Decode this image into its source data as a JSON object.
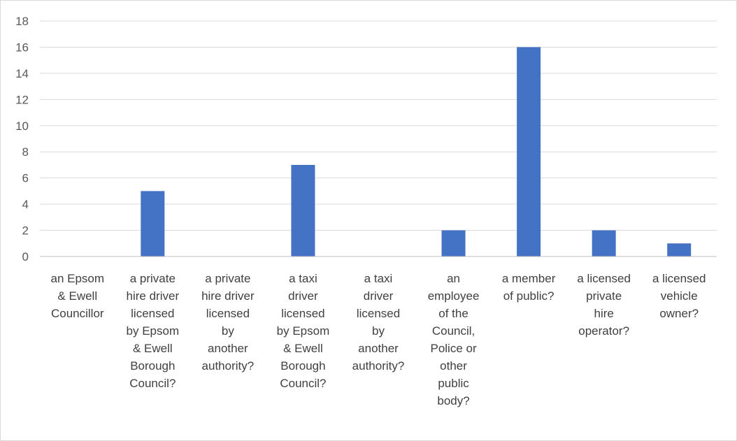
{
  "chart_data": {
    "type": "bar",
    "title": "",
    "xlabel": "",
    "ylabel": "",
    "ylim": [
      0,
      18
    ],
    "yticks": [
      0,
      2,
      4,
      6,
      8,
      10,
      12,
      14,
      16,
      18
    ],
    "grid": true,
    "legend": "none",
    "bar_color": "#4472c4",
    "categories": [
      [
        "an Epsom",
        "& Ewell",
        "Councillor"
      ],
      [
        "a private",
        "hire driver",
        "licensed",
        "by Epsom",
        "& Ewell",
        "Borough",
        "Council?"
      ],
      [
        "a private",
        "hire driver",
        "licensed",
        "by",
        "another",
        "authority?"
      ],
      [
        "a taxi",
        "driver",
        "licensed",
        "by Epsom",
        "& Ewell",
        "Borough",
        "Council?"
      ],
      [
        "a taxi",
        "driver",
        "licensed",
        "by",
        "another",
        "authority?"
      ],
      [
        "an",
        "employee",
        "of the",
        "Council,",
        "Police or",
        "other",
        "public",
        "body?"
      ],
      [
        "a member",
        "of public?"
      ],
      [
        "a licensed",
        "private",
        "hire",
        "operator?"
      ],
      [
        "a licensed",
        "vehicle",
        "owner?"
      ]
    ],
    "values": [
      0,
      5,
      0,
      7,
      0,
      2,
      16,
      2,
      1
    ]
  }
}
